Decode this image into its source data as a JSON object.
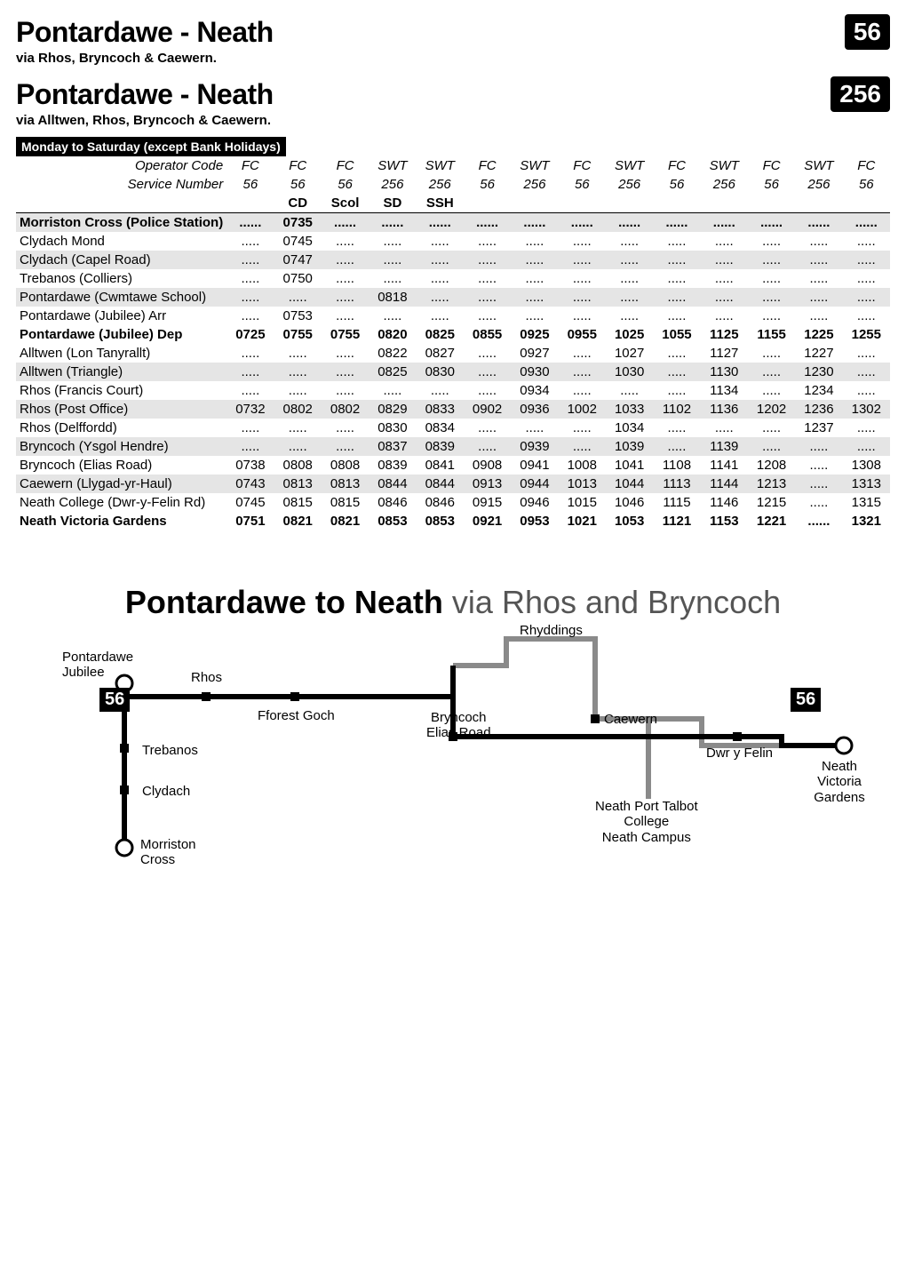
{
  "routes": [
    {
      "title": "Pontardawe - Neath",
      "via": "via Rhos, Bryncoch & Caewern.",
      "badge": "56"
    },
    {
      "title": "Pontardawe - Neath",
      "via": "via Alltwen, Rhos, Bryncoch & Caewern.",
      "badge": "256"
    }
  ],
  "day_banner": "Monday to Saturday (except Bank Holidays)",
  "header_rows": [
    {
      "label": "Operator Code",
      "cells": [
        "FC",
        "FC",
        "FC",
        "SWT",
        "SWT",
        "FC",
        "SWT",
        "FC",
        "SWT",
        "FC",
        "SWT",
        "FC",
        "SWT",
        "FC"
      ],
      "italic": true
    },
    {
      "label": "Service Number",
      "cells": [
        "56",
        "56",
        "56",
        "256",
        "256",
        "56",
        "256",
        "56",
        "256",
        "56",
        "256",
        "56",
        "256",
        "56"
      ],
      "italic": true
    },
    {
      "label": "",
      "cells": [
        "",
        "CD",
        "Scol",
        "SD",
        "SSH",
        "",
        "",
        "",
        "",
        "",
        "",
        "",
        "",
        ""
      ],
      "bold": true,
      "border": true
    }
  ],
  "body_rows": [
    {
      "stop": "Morriston Cross (Police Station)",
      "cells": [
        "......",
        "0735",
        "......",
        "......",
        "......",
        "......",
        "......",
        "......",
        "......",
        "......",
        "......",
        "......",
        "......",
        "......"
      ],
      "shaded": true,
      "bold": true
    },
    {
      "stop": "Clydach Mond",
      "cells": [
        ".....",
        "0745",
        ".....",
        ".....",
        ".....",
        ".....",
        ".....",
        ".....",
        ".....",
        ".....",
        ".....",
        ".....",
        ".....",
        "....."
      ]
    },
    {
      "stop": "Clydach (Capel Road)",
      "cells": [
        ".....",
        "0747",
        ".....",
        ".....",
        ".....",
        ".....",
        ".....",
        ".....",
        ".....",
        ".....",
        ".....",
        ".....",
        ".....",
        "....."
      ],
      "shaded": true
    },
    {
      "stop": "Trebanos (Colliers)",
      "cells": [
        ".....",
        "0750",
        ".....",
        ".....",
        ".....",
        ".....",
        ".....",
        ".....",
        ".....",
        ".....",
        ".....",
        ".....",
        ".....",
        "....."
      ]
    },
    {
      "stop": "Pontardawe (Cwmtawe School)",
      "cells": [
        ".....",
        ".....",
        ".....",
        "0818",
        ".....",
        ".....",
        ".....",
        ".....",
        ".....",
        ".....",
        ".....",
        ".....",
        ".....",
        "....."
      ],
      "shaded": true
    },
    {
      "stop": "Pontardawe (Jubilee) Arr",
      "cells": [
        ".....",
        "0753",
        ".....",
        ".....",
        ".....",
        ".....",
        ".....",
        ".....",
        ".....",
        ".....",
        ".....",
        ".....",
        ".....",
        "....."
      ]
    },
    {
      "stop": "Pontardawe (Jubilee) Dep",
      "cells": [
        "0725",
        "0755",
        "0755",
        "0820",
        "0825",
        "0855",
        "0925",
        "0955",
        "1025",
        "1055",
        "1125",
        "1155",
        "1225",
        "1255"
      ],
      "bold": true
    },
    {
      "stop": "Alltwen (Lon Tanyrallt)",
      "cells": [
        ".....",
        ".....",
        ".....",
        "0822",
        "0827",
        ".....",
        "0927",
        ".....",
        "1027",
        ".....",
        "1127",
        ".....",
        "1227",
        "....."
      ]
    },
    {
      "stop": "Alltwen (Triangle)",
      "cells": [
        ".....",
        ".....",
        ".....",
        "0825",
        "0830",
        ".....",
        "0930",
        ".....",
        "1030",
        ".....",
        "1130",
        ".....",
        "1230",
        "....."
      ],
      "shaded": true
    },
    {
      "stop": "Rhos (Francis Court)",
      "cells": [
        ".....",
        ".....",
        ".....",
        ".....",
        ".....",
        ".....",
        "0934",
        ".....",
        ".....",
        ".....",
        "1134",
        ".....",
        "1234",
        "....."
      ]
    },
    {
      "stop": "Rhos (Post Office)",
      "cells": [
        "0732",
        "0802",
        "0802",
        "0829",
        "0833",
        "0902",
        "0936",
        "1002",
        "1033",
        "1102",
        "1136",
        "1202",
        "1236",
        "1302"
      ],
      "shaded": true
    },
    {
      "stop": "Rhos (Delffordd)",
      "cells": [
        ".....",
        ".....",
        ".....",
        "0830",
        "0834",
        ".....",
        ".....",
        ".....",
        "1034",
        ".....",
        ".....",
        ".....",
        "1237",
        "....."
      ]
    },
    {
      "stop": "Bryncoch (Ysgol Hendre)",
      "cells": [
        ".....",
        ".....",
        ".....",
        "0837",
        "0839",
        ".....",
        "0939",
        ".....",
        "1039",
        ".....",
        "1139",
        ".....",
        ".....",
        "....."
      ],
      "shaded": true
    },
    {
      "stop": "Bryncoch (Elias Road)",
      "cells": [
        "0738",
        "0808",
        "0808",
        "0839",
        "0841",
        "0908",
        "0941",
        "1008",
        "1041",
        "1108",
        "1141",
        "1208",
        ".....",
        "1308"
      ]
    },
    {
      "stop": "Caewern (Llygad-yr-Haul)",
      "cells": [
        "0743",
        "0813",
        "0813",
        "0844",
        "0844",
        "0913",
        "0944",
        "1013",
        "1044",
        "1113",
        "1144",
        "1213",
        ".....",
        "1313"
      ],
      "shaded": true
    },
    {
      "stop": "Neath College (Dwr-y-Felin Rd)",
      "cells": [
        "0745",
        "0815",
        "0815",
        "0846",
        "0846",
        "0915",
        "0946",
        "1015",
        "1046",
        "1115",
        "1146",
        "1215",
        ".....",
        "1315"
      ]
    },
    {
      "stop": "Neath Victoria Gardens",
      "cells": [
        "0751",
        "0821",
        "0821",
        "0853",
        "0853",
        "0921",
        "0953",
        "1021",
        "1053",
        "1121",
        "1153",
        "1221",
        "......",
        "1321"
      ],
      "bold": true
    }
  ],
  "heading": {
    "bold": "Pontardawe to Neath",
    "light": " via Rhos and Bryncoch"
  },
  "diagram": {
    "labels": {
      "pontardawe": "Pontardawe\nJubilee",
      "rhos": "Rhos",
      "fforest": "Fforest Goch",
      "trebanos": "Trebanos",
      "clydach": "Clydach",
      "morriston": "Morriston\nCross",
      "bryncoch": "Bryncoch\nElias Road",
      "rhyddings": "Rhyddings",
      "caewern": "Caewern",
      "dwr": "Dwr y Felin",
      "neath": "Neath\nVictoria Gardens",
      "college": "Neath Port Talbot\nCollege\nNeath Campus"
    },
    "badge": "56"
  },
  "colors": {
    "shade": "#e5e5e5",
    "line_black": "#000000",
    "line_grey": "#8a8a8a"
  }
}
